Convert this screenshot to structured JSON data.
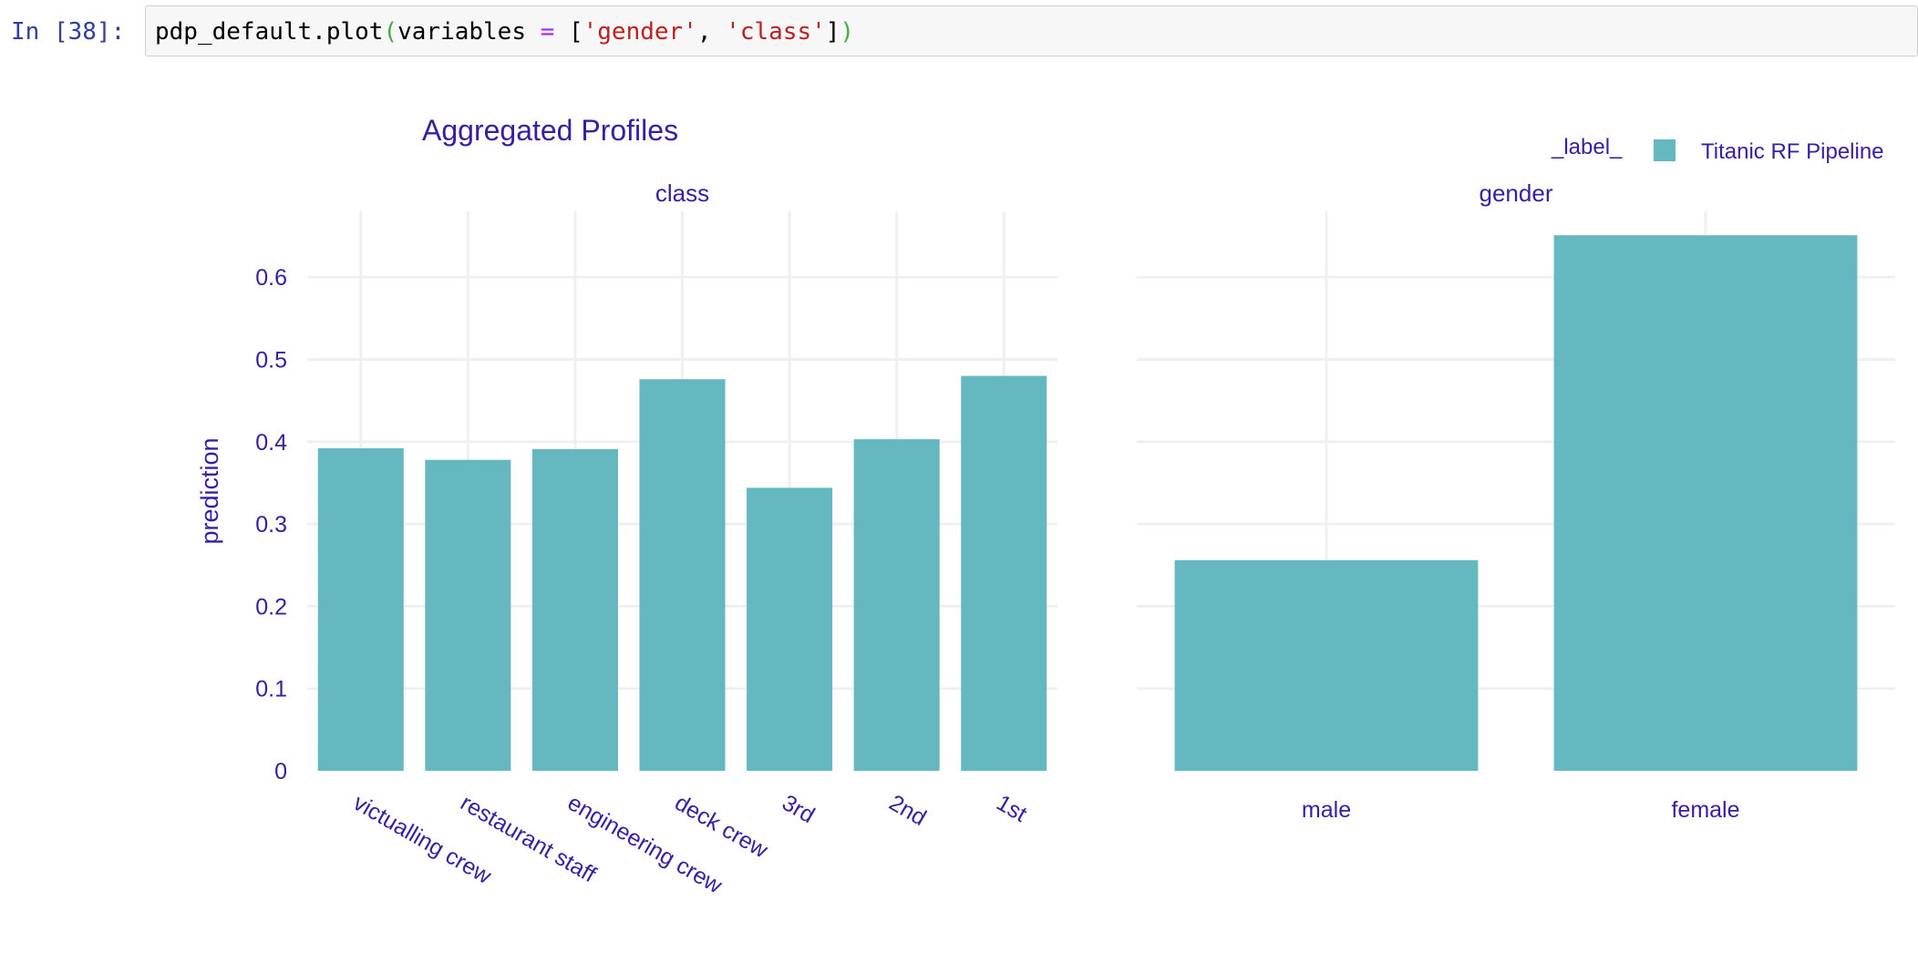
{
  "cell": {
    "prompt": "In [38]:",
    "code": {
      "obj": "pdp_default.plot",
      "open_paren": "(",
      "arg_name": "variables ",
      "equals": "=",
      "list_open": " [",
      "str1": "'gender'",
      "comma": ", ",
      "str2": "'class'",
      "list_close": "]",
      "close_paren": ")"
    }
  },
  "colors": {
    "bar": "#66b8c0",
    "text": "#371ea3",
    "grid": "#f0f0f4"
  },
  "chart_data": {
    "type": "bar",
    "title": "Aggregated Profiles",
    "ylabel": "prediction",
    "ylim": [
      0,
      0.68
    ],
    "yticks": [
      0,
      0.1,
      0.2,
      0.3,
      0.4,
      0.5,
      0.6
    ],
    "ytick_labels": [
      "0",
      "0.1",
      "0.2",
      "0.3",
      "0.4",
      "0.5",
      "0.6"
    ],
    "grid": true,
    "legend": {
      "title": "_label_",
      "placement": "top-right",
      "entries": [
        "Titanic RF Pipeline"
      ]
    },
    "panels": [
      {
        "title": "class",
        "categories": [
          "victualling crew",
          "restaurant staff",
          "engineering crew",
          "deck crew",
          "3rd",
          "2nd",
          "1st"
        ],
        "series": [
          {
            "name": "Titanic RF Pipeline",
            "values": [
              0.392,
              0.378,
              0.391,
              0.476,
              0.344,
              0.403,
              0.48
            ]
          }
        ]
      },
      {
        "title": "gender",
        "categories": [
          "male",
          "female"
        ],
        "series": [
          {
            "name": "Titanic RF Pipeline",
            "values": [
              0.256,
              0.651
            ]
          }
        ]
      }
    ]
  }
}
